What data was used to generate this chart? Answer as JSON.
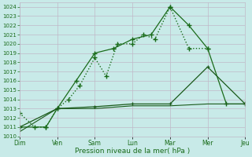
{
  "x_labels": [
    "Dim",
    "Ven",
    "Sam",
    "Lun",
    "Mar",
    "Mer",
    "Jeu"
  ],
  "x_ticks": [
    0,
    1,
    2,
    3,
    4,
    5,
    6
  ],
  "line1_x": [
    0,
    0.4,
    0.7,
    1.0,
    1.3,
    1.6,
    2.0,
    2.3,
    2.6,
    3.0,
    3.3,
    3.6,
    4.0,
    4.5,
    5.0
  ],
  "line1_y": [
    1012.5,
    1011.0,
    1011.0,
    1013.0,
    1014.0,
    1015.5,
    1018.5,
    1016.5,
    1020.0,
    1020.0,
    1021.0,
    1020.5,
    1024.0,
    1019.5,
    1019.5
  ],
  "line2_x": [
    0,
    0.7,
    1.0,
    1.5,
    2.0,
    2.5,
    3.0,
    3.5,
    4.0,
    4.5,
    5.0,
    5.5,
    6.0
  ],
  "line2_y": [
    1011.0,
    1011.0,
    1013.0,
    1016.0,
    1019.0,
    1019.5,
    1020.5,
    1021.0,
    1024.0,
    1022.0,
    1019.5,
    1013.5,
    1013.5
  ],
  "line3_x": [
    0,
    1,
    2,
    3,
    4,
    5,
    6
  ],
  "line3_y": [
    1011.0,
    1013.0,
    1013.2,
    1013.5,
    1013.5,
    1017.5,
    1013.5
  ],
  "line4_x": [
    0,
    1,
    2,
    3,
    4,
    5,
    6
  ],
  "line4_y": [
    1010.5,
    1013.0,
    1013.0,
    1013.3,
    1013.3,
    1013.5,
    1013.5
  ],
  "ylim": [
    1010,
    1024.5
  ],
  "ytick_min": 1010,
  "ytick_max": 1024,
  "xlabel": "Pression niveau de la mer( hPa )",
  "bg_color": "#c8eae8",
  "grid_color": "#c0b8c8",
  "line_color": "#1a6b1a",
  "line_color2": "#1a5a1a"
}
